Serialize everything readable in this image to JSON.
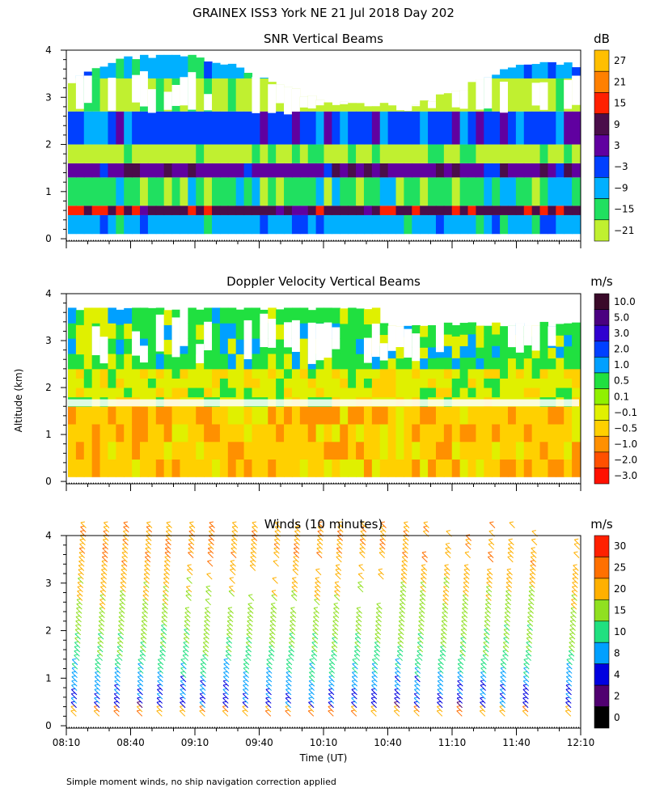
{
  "figure": {
    "title": "GRAINEX ISS3 York NE  21 Jul 2018 Day 202",
    "ylabel": "Altitude (km)",
    "xlabel": "Time (UT)",
    "footnote": "Simple moment winds, no ship navigation correction applied"
  },
  "chart_data": [
    {
      "type": "heatmap",
      "title": "SNR Vertical Beams",
      "unit": "dB",
      "x_ticks": [
        "08:10",
        "08:40",
        "09:10",
        "09:40",
        "10:10",
        "10:40",
        "11:10",
        "11:40",
        "12:10"
      ],
      "y_ticks": [
        "0",
        "1",
        "2",
        "3",
        "4"
      ],
      "xlim": [
        "08:10",
        "12:10"
      ],
      "ylim": [
        0,
        4
      ],
      "colorbar": {
        "labels": [
          "27",
          "21",
          "15",
          "9",
          "3",
          "−3",
          "−9",
          "−15",
          "−21"
        ],
        "colors": [
          "#ffbf00",
          "#ff8000",
          "#ff2000",
          "#4a0d4a",
          "#6000a0",
          "#0040ff",
          "#00b0ff",
          "#20e060",
          "#c0f030"
        ]
      },
      "layers_km": [
        {
          "alt_from": 0.1,
          "alt_to": 0.5,
          "snr_db": -9
        },
        {
          "alt_from": 0.5,
          "alt_to": 0.7,
          "snr_db": 9
        },
        {
          "alt_from": 0.7,
          "alt_to": 1.3,
          "snr_db": -15
        },
        {
          "alt_from": 1.3,
          "alt_to": 1.6,
          "snr_db": 3
        },
        {
          "alt_from": 1.6,
          "alt_to": 2.0,
          "snr_db": -21
        },
        {
          "alt_from": 2.0,
          "alt_to": 2.7,
          "snr_db": -3
        },
        {
          "alt_from": 2.7,
          "alt_to": 3.4,
          "snr_db": -21
        },
        {
          "alt_from": 3.4,
          "alt_to": 3.9,
          "snr_db": -9
        }
      ]
    },
    {
      "type": "heatmap",
      "title": "Doppler Velocity Vertical Beams",
      "unit": "m/s",
      "x_ticks": [
        "08:10",
        "08:40",
        "09:10",
        "09:40",
        "10:10",
        "10:40",
        "11:10",
        "11:40",
        "12:10"
      ],
      "y_ticks": [
        "0",
        "1",
        "2",
        "3",
        "4"
      ],
      "xlim": [
        "08:10",
        "12:10"
      ],
      "ylim": [
        0,
        4
      ],
      "colorbar": {
        "labels": [
          "10.0",
          "5.0",
          "3.0",
          "2.0",
          "1.0",
          "0.5",
          "0.1",
          "−0.1",
          "−0.5",
          "−1.0",
          "−2.0",
          "−3.0"
        ],
        "colors": [
          "#3a0a2a",
          "#4a0080",
          "#3000d0",
          "#0040ff",
          "#00a0ff",
          "#20e040",
          "#90f000",
          "#e0f000",
          "#ffd000",
          "#ff9000",
          "#ff5000",
          "#ff1000"
        ]
      },
      "layers_km": [
        {
          "alt_from": 0.1,
          "alt_to": 1.6,
          "velocity_ms": -0.5
        },
        {
          "alt_from": 1.6,
          "alt_to": 2.4,
          "velocity_ms": -0.1
        },
        {
          "alt_from": 2.4,
          "alt_to": 3.7,
          "velocity_ms": 0.5
        }
      ]
    },
    {
      "type": "wind_barbs",
      "title": "Winds (10 minutes)",
      "unit": "m/s",
      "x_ticks": [
        "08:10",
        "08:40",
        "09:10",
        "09:40",
        "10:10",
        "10:40",
        "11:10",
        "11:40",
        "12:10"
      ],
      "y_ticks": [
        "0",
        "1",
        "2",
        "3",
        "4"
      ],
      "xlim": [
        "08:10",
        "12:10"
      ],
      "ylim": [
        0,
        4
      ],
      "colorbar": {
        "labels": [
          "30",
          "25",
          "20",
          "15",
          "10",
          "8",
          "4",
          "2",
          "0"
        ],
        "colors": [
          "#ff2000",
          "#ff7000",
          "#ffb000",
          "#90e020",
          "#20e080",
          "#00a0ff",
          "#0000e0",
          "#500070",
          "#000000"
        ]
      },
      "profile_times": [
        "08:10",
        "08:20",
        "08:30",
        "08:40",
        "08:50",
        "09:00",
        "09:10",
        "09:20",
        "09:30",
        "09:40",
        "09:50",
        "10:00",
        "10:10",
        "10:20",
        "10:30",
        "10:40",
        "10:50",
        "11:00",
        "11:10",
        "11:20",
        "11:30",
        "11:40",
        "11:50",
        "12:00"
      ],
      "speed_profile_ms": [
        {
          "alt_km": 0.3,
          "speed": 4
        },
        {
          "alt_km": 1.0,
          "speed": 8
        },
        {
          "alt_km": 1.5,
          "speed": 12
        },
        {
          "alt_km": 2.5,
          "speed": 16
        },
        {
          "alt_km": 3.5,
          "speed": 22
        },
        {
          "alt_km": 4.2,
          "speed": 22
        }
      ]
    }
  ]
}
